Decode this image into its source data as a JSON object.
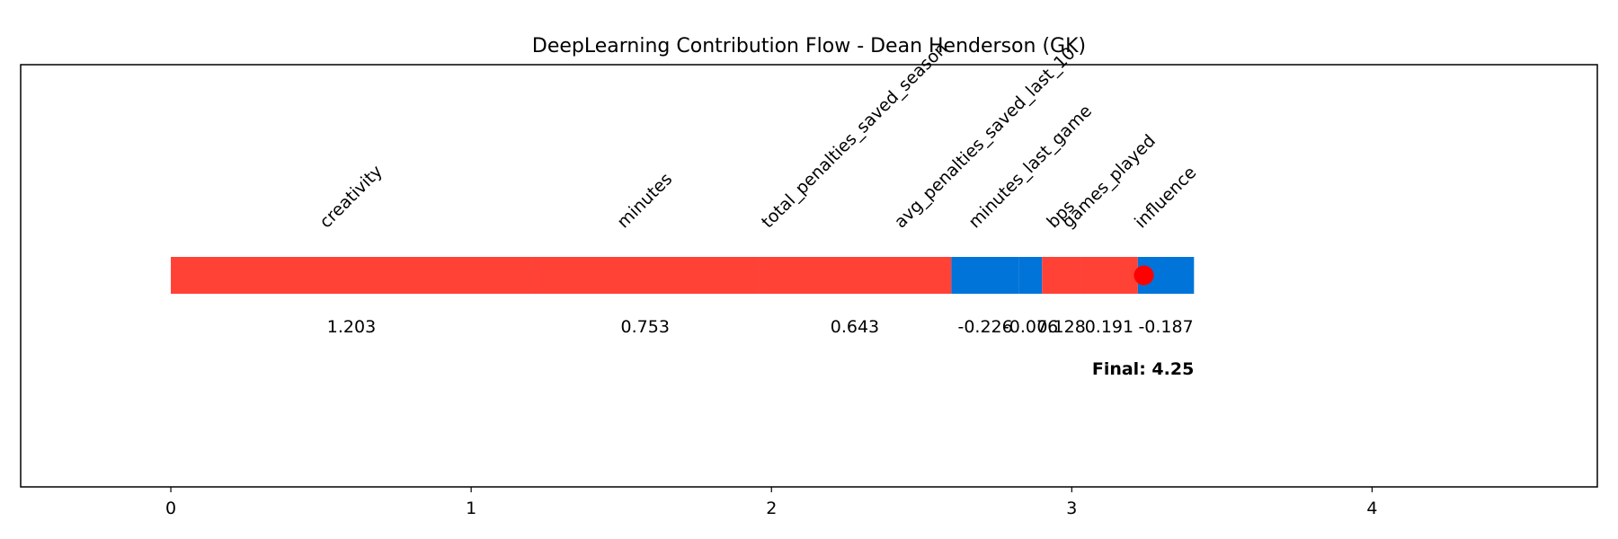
{
  "chart_data": {
    "type": "contribution_flow",
    "title": "DeepLearning Contribution Flow - Dean Henderson (GK)",
    "categories": [
      "creativity",
      "minutes",
      "total_penalties_saved_season",
      "avg_penalties_saved_last_10",
      "minutes_last_game",
      "bps",
      "games_played",
      "influence"
    ],
    "values": [
      1.203,
      0.753,
      0.643,
      -0.226,
      -0.076,
      0.128,
      0.191,
      -0.187
    ],
    "positive_color": "#ff4136",
    "negative_color": "#0074d9",
    "marker": {
      "x": 3.24,
      "color": "#ff0000"
    },
    "final_label": "Final: 4.25",
    "xlim": [
      -0.5,
      4.75
    ],
    "xticks": [
      0,
      1,
      2,
      3,
      4
    ]
  }
}
